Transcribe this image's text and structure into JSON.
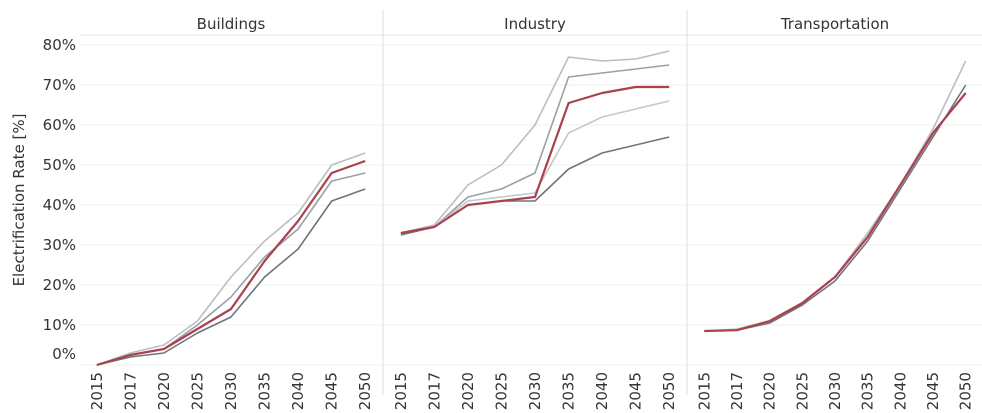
{
  "y_label": "Electrification Rate [%]",
  "chart_data": [
    {
      "type": "line",
      "title": "Buildings",
      "categories": [
        "2015",
        "2017",
        "2020",
        "2025",
        "2030",
        "2035",
        "2040",
        "2045",
        "2050"
      ],
      "series": [
        {
          "color": "#b9bec4",
          "values": [
            0,
            3,
            5,
            11,
            22,
            31,
            38,
            50,
            53
          ]
        },
        {
          "color": "#9aa0a7",
          "values": [
            0,
            2.5,
            4,
            10,
            17,
            27,
            34,
            46,
            48
          ]
        },
        {
          "color": "#6f757d",
          "values": [
            0,
            2,
            3,
            8,
            12,
            22,
            29,
            41,
            44
          ]
        },
        {
          "color": "#a8424d",
          "values": [
            0,
            2.5,
            4,
            9,
            14,
            26,
            36,
            48,
            51
          ]
        }
      ],
      "ylim": [
        0,
        82.5
      ],
      "yticks": [
        {
          "value": 0,
          "label": "0%"
        },
        {
          "value": 10,
          "label": "10%"
        },
        {
          "value": 20,
          "label": "20%"
        },
        {
          "value": 30,
          "label": "30%"
        },
        {
          "value": 40,
          "label": "40%"
        },
        {
          "value": 50,
          "label": "50%"
        },
        {
          "value": 60,
          "label": "60%"
        },
        {
          "value": 70,
          "label": "70%"
        },
        {
          "value": 80,
          "label": "80%"
        }
      ],
      "grid": true
    },
    {
      "type": "line",
      "title": "Industry",
      "categories": [
        "2015",
        "2017",
        "2020",
        "2025",
        "2030",
        "2035",
        "2040",
        "2045",
        "2050"
      ],
      "series": [
        {
          "color": "#b9bec4",
          "values": [
            33,
            35,
            45,
            50,
            60,
            77,
            76,
            76.5,
            78.5
          ]
        },
        {
          "color": "#9aa0a7",
          "values": [
            33,
            34.5,
            42,
            44,
            48,
            72,
            73,
            74,
            75
          ]
        },
        {
          "color": "#c4c8cd",
          "values": [
            33,
            34.5,
            41,
            42,
            43,
            58,
            62,
            64,
            66
          ]
        },
        {
          "color": "#6f757d",
          "values": [
            32.5,
            34.5,
            40,
            41,
            41,
            49,
            53,
            55,
            57
          ]
        },
        {
          "color": "#a8424d",
          "values": [
            33,
            34.5,
            40,
            41,
            42,
            65.5,
            68,
            69.5,
            69.5
          ]
        }
      ],
      "ylim": [
        0,
        82.5
      ],
      "yticks": [
        0,
        10,
        20,
        30,
        40,
        50,
        60,
        70,
        80
      ],
      "grid": true
    },
    {
      "type": "line",
      "title": "Transportation",
      "categories": [
        "2015",
        "2017",
        "2020",
        "2025",
        "2030",
        "2035",
        "2040",
        "2045",
        "2050"
      ],
      "series": [
        {
          "color": "#b9bec4",
          "values": [
            8.5,
            9,
            11,
            15.5,
            22,
            33,
            45,
            59,
            76
          ]
        },
        {
          "color": "#6f757d",
          "values": [
            8.5,
            8.7,
            10.5,
            15,
            21,
            31,
            44,
            57,
            70
          ]
        },
        {
          "color": "#a8424d",
          "values": [
            8.5,
            8.7,
            11,
            15.5,
            22,
            32,
            45,
            58,
            68
          ]
        }
      ],
      "ylim": [
        0,
        82.5
      ],
      "yticks": [
        0,
        10,
        20,
        30,
        40,
        50,
        60,
        70,
        80
      ],
      "grid": true
    }
  ]
}
